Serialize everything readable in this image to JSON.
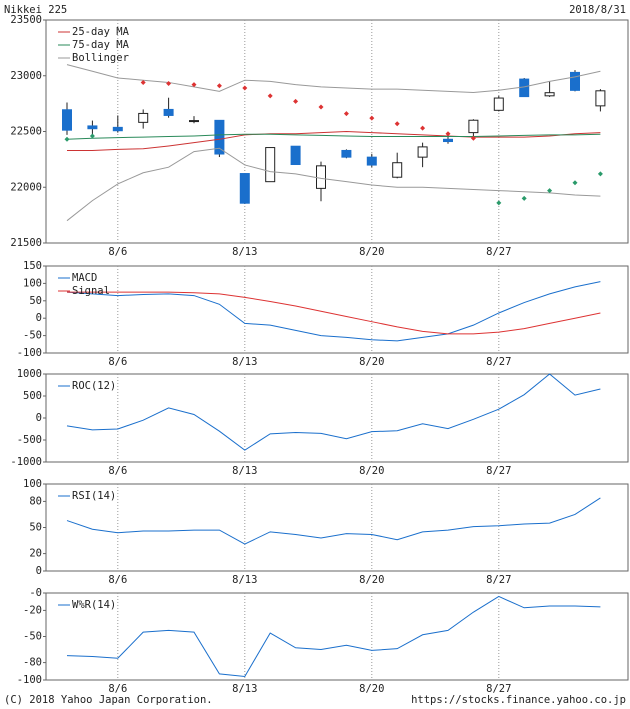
{
  "header": {
    "title": "Nikkei 225",
    "date": "2018/8/31"
  },
  "footer": {
    "copyright": "(C) 2018 Yahoo Japan Corporation.",
    "url": "https://stocks.finance.yahoo.co.jp"
  },
  "chart_data": [
    {
      "type": "candlestick",
      "categories": [
        null,
        null,
        "8/6",
        null,
        null,
        null,
        null,
        "8/13",
        null,
        null,
        null,
        null,
        "8/20",
        null,
        null,
        null,
        null,
        "8/27",
        null,
        null,
        null,
        null
      ],
      "open": [
        22695,
        22550,
        22537,
        22582,
        22698,
        22591,
        22600,
        22123,
        22050,
        22368,
        21990,
        22330,
        22270,
        22090,
        22270,
        22430,
        22490,
        22690,
        22970,
        22820,
        23030,
        22730
      ],
      "high": [
        22760,
        22598,
        22644,
        22698,
        22803,
        22638,
        22600,
        22123,
        22356,
        22368,
        22230,
        22340,
        22300,
        22310,
        22400,
        22480,
        22610,
        22820,
        22980,
        22950,
        23050,
        22880
      ],
      "low": [
        22470,
        22445,
        22490,
        22526,
        22624,
        22574,
        22271,
        21851,
        22048,
        22200,
        21875,
        22260,
        22180,
        22080,
        22180,
        22390,
        22450,
        22680,
        22810,
        22810,
        22860,
        22680
      ],
      "close": [
        22512,
        22525,
        22507,
        22662,
        22644,
        22598,
        22298,
        21857,
        22356,
        22204,
        22192,
        22270,
        22199,
        22220,
        22362,
        22410,
        22601,
        22800,
        22813,
        22848,
        22869,
        22865
      ],
      "up_color": "#ffffff",
      "down_color": "#1a6fcc",
      "series": [
        {
          "name": "25-day MA",
          "color": "#cc3333",
          "values": [
            22330,
            22330,
            22340,
            22345,
            22370,
            22400,
            22430,
            22470,
            22480,
            22480,
            22490,
            22500,
            22490,
            22480,
            22470,
            22460,
            22450,
            22450,
            22450,
            22460,
            22480,
            22490
          ]
        },
        {
          "name": "75-day MA",
          "color": "#2a8a5a",
          "values": [
            22430,
            22440,
            22445,
            22450,
            22455,
            22460,
            22470,
            22475,
            22475,
            22470,
            22465,
            22460,
            22455,
            22455,
            22455,
            22455,
            22455,
            22460,
            22465,
            22470,
            22470,
            22475
          ]
        },
        {
          "name": "Bollinger",
          "color": "#999999",
          "values": [
            23100,
            23040,
            22980,
            22960,
            22940,
            22900,
            22860,
            22960,
            22950,
            22920,
            22900,
            22890,
            22880,
            22880,
            22870,
            22860,
            22850,
            22870,
            22900,
            22950,
            22990,
            23040
          ],
          "lower_values": [
            21700,
            21880,
            22030,
            22130,
            22180,
            22320,
            22350,
            22200,
            22140,
            22120,
            22080,
            22050,
            22020,
            22000,
            22000,
            21990,
            21980,
            21970,
            21960,
            21950,
            21930,
            21920
          ]
        }
      ],
      "markers": {
        "values": [
          22430,
          22460,
          null,
          22940,
          22930,
          22920,
          22910,
          22890,
          22820,
          22770,
          22720,
          22660,
          22620,
          22570,
          22530,
          22480,
          22440,
          21860,
          21900,
          21970,
          22040,
          22120
        ],
        "colors": [
          "#2a9a6a",
          "#2a9a6a",
          "#2a9a6a",
          "#dd3333",
          "#dd3333",
          "#dd3333",
          "#dd3333",
          "#dd3333",
          "#dd3333",
          "#dd3333",
          "#dd3333",
          "#dd3333",
          "#dd3333",
          "#dd3333",
          "#dd3333",
          "#dd3333",
          "#dd3333",
          "#2a9a6a",
          "#2a9a6a",
          "#2a9a6a",
          "#2a9a6a",
          "#2a9a6a"
        ]
      },
      "ylim": [
        21500,
        23500
      ],
      "yticks": [
        21500,
        22000,
        22500,
        23000,
        23500
      ],
      "grid": "x"
    },
    {
      "type": "line",
      "categories": [
        null,
        null,
        "8/6",
        null,
        null,
        null,
        null,
        "8/13",
        null,
        null,
        null,
        null,
        "8/20",
        null,
        null,
        null,
        null,
        "8/27",
        null,
        null,
        null,
        null
      ],
      "series": [
        {
          "name": "MACD",
          "color": "#1a6fcc",
          "values": [
            75,
            70,
            65,
            68,
            70,
            65,
            40,
            -15,
            -20,
            -35,
            -50,
            -55,
            -62,
            -65,
            -55,
            -45,
            -20,
            15,
            45,
            70,
            90,
            105
          ]
        },
        {
          "name": "Signal",
          "color": "#dd3333",
          "values": [
            75,
            75,
            75,
            75,
            75,
            73,
            70,
            60,
            48,
            35,
            20,
            5,
            -10,
            -25,
            -38,
            -45,
            -45,
            -40,
            -30,
            -15,
            0,
            15
          ]
        }
      ],
      "ylim": [
        -100,
        150
      ],
      "yticks": [
        -100,
        -50,
        0,
        50,
        100,
        150
      ],
      "grid": "x"
    },
    {
      "type": "line",
      "categories": [
        null,
        null,
        "8/6",
        null,
        null,
        null,
        null,
        "8/13",
        null,
        null,
        null,
        null,
        "8/20",
        null,
        null,
        null,
        null,
        "8/27",
        null,
        null,
        null,
        null
      ],
      "series": [
        {
          "name": "ROC(12)",
          "color": "#1a6fcc",
          "values": [
            -180,
            -270,
            -250,
            -50,
            230,
            80,
            -300,
            -730,
            -360,
            -330,
            -350,
            -470,
            -310,
            -290,
            -130,
            -240,
            -30,
            200,
            530,
            1000,
            520,
            660
          ]
        }
      ],
      "ylim": [
        -1000,
        1000
      ],
      "yticks": [
        -1000,
        -500,
        0,
        500,
        1000
      ],
      "grid": "x"
    },
    {
      "type": "line",
      "categories": [
        null,
        null,
        "8/6",
        null,
        null,
        null,
        null,
        "8/13",
        null,
        null,
        null,
        null,
        "8/20",
        null,
        null,
        null,
        null,
        "8/27",
        null,
        null,
        null,
        null
      ],
      "series": [
        {
          "name": "RSI(14)",
          "color": "#1a6fcc",
          "values": [
            58,
            48,
            44,
            46,
            46,
            47,
            47,
            31,
            45,
            42,
            38,
            43,
            42,
            36,
            45,
            47,
            51,
            52,
            54,
            55,
            65,
            84
          ]
        }
      ],
      "ylim": [
        0,
        100
      ],
      "yticks": [
        0,
        20,
        50,
        80,
        100
      ],
      "grid": "x"
    },
    {
      "type": "line",
      "categories": [
        null,
        null,
        "8/6",
        null,
        null,
        null,
        null,
        "8/13",
        null,
        null,
        null,
        null,
        "8/20",
        null,
        null,
        null,
        null,
        "8/27",
        null,
        null,
        null,
        null
      ],
      "series": [
        {
          "name": "W%R(14)",
          "color": "#1a6fcc",
          "values": [
            -72,
            -73,
            -75,
            -45,
            -43,
            -45,
            -93,
            -96,
            -46,
            -63,
            -65,
            -60,
            -66,
            -64,
            -48,
            -43,
            -22,
            -4,
            -17,
            -15,
            -15,
            -16
          ]
        }
      ],
      "ylim": [
        -100,
        0
      ],
      "yticks": [
        -100,
        -80,
        -50,
        -20,
        {
          "value": 0,
          "label": "-0"
        }
      ],
      "grid": "x"
    }
  ]
}
